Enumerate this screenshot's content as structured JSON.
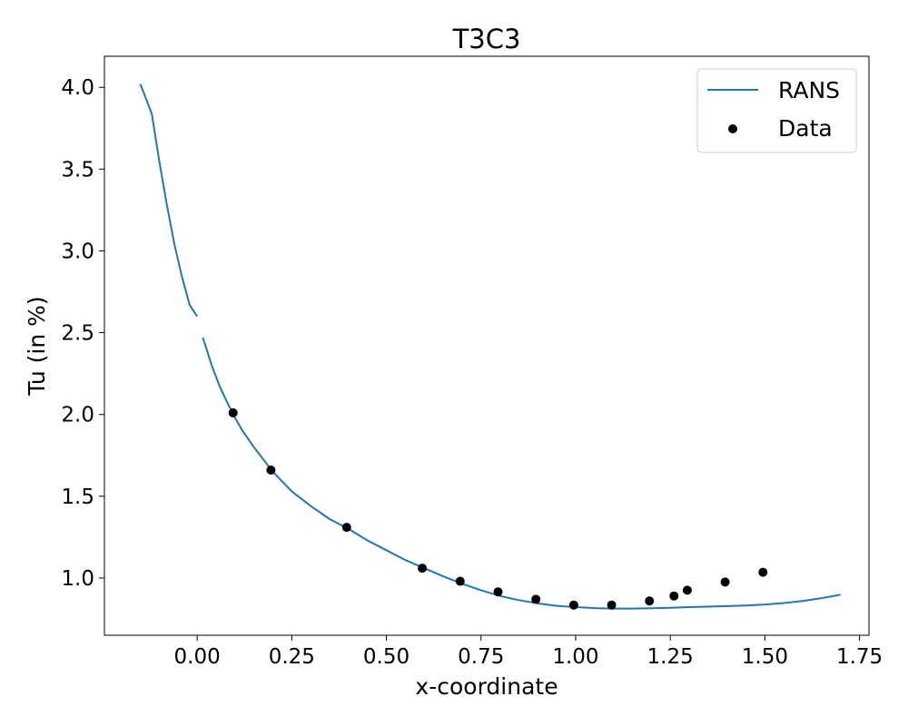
{
  "chart_data": {
    "type": "line",
    "title": "T3C3",
    "xlabel": "x-coordinate",
    "ylabel": "Tu (in %)",
    "xlim": [
      -0.245,
      1.775
    ],
    "ylim": [
      0.65,
      4.19
    ],
    "xticks": [
      0.0,
      0.25,
      0.5,
      0.75,
      1.0,
      1.25,
      1.5,
      1.75
    ],
    "xtick_labels": [
      "0.00",
      "0.25",
      "0.50",
      "0.75",
      "1.00",
      "1.25",
      "1.50",
      "1.75"
    ],
    "yticks": [
      1.0,
      1.5,
      2.0,
      2.5,
      3.0,
      3.5,
      4.0
    ],
    "ytick_labels": [
      "1.0",
      "1.5",
      "2.0",
      "2.5",
      "3.0",
      "3.5",
      "4.0"
    ],
    "grid": false,
    "legend_position": "top-right",
    "series": [
      {
        "name": "RANS",
        "kind": "line",
        "color": "#1f77b4",
        "segments": [
          {
            "x": [
              -0.15,
              -0.12,
              -0.1,
              -0.08,
              -0.06,
              -0.04,
              -0.02,
              0.0
            ],
            "y": [
              4.02,
              3.84,
              3.55,
              3.28,
              3.04,
              2.84,
              2.67,
              2.6
            ]
          },
          {
            "x": [
              0.015,
              0.04,
              0.06,
              0.08,
              0.1,
              0.12,
              0.15,
              0.2,
              0.25,
              0.3,
              0.35,
              0.4,
              0.45,
              0.5,
              0.55,
              0.6,
              0.65,
              0.7,
              0.75,
              0.8,
              0.85,
              0.9,
              0.95,
              1.0,
              1.05,
              1.1,
              1.15,
              1.2,
              1.25,
              1.3,
              1.35,
              1.4,
              1.45,
              1.5,
              1.55,
              1.6,
              1.65,
              1.7
            ],
            "y": [
              2.47,
              2.29,
              2.17,
              2.07,
              1.98,
              1.9,
              1.8,
              1.65,
              1.53,
              1.44,
              1.36,
              1.3,
              1.23,
              1.17,
              1.11,
              1.06,
              1.01,
              0.965,
              0.925,
              0.89,
              0.865,
              0.845,
              0.83,
              0.822,
              0.816,
              0.813,
              0.813,
              0.815,
              0.818,
              0.822,
              0.825,
              0.828,
              0.832,
              0.838,
              0.847,
              0.86,
              0.877,
              0.898
            ]
          }
        ]
      },
      {
        "name": "Data",
        "kind": "scatter",
        "color": "#000000",
        "x": [
          0.095,
          0.195,
          0.395,
          0.595,
          0.695,
          0.795,
          0.895,
          0.995,
          1.095,
          1.195,
          1.26,
          1.295,
          1.395,
          1.495
        ],
        "y": [
          2.01,
          1.66,
          1.31,
          1.06,
          0.98,
          0.915,
          0.87,
          0.835,
          0.835,
          0.86,
          0.89,
          0.925,
          0.975,
          1.035
        ]
      }
    ]
  }
}
